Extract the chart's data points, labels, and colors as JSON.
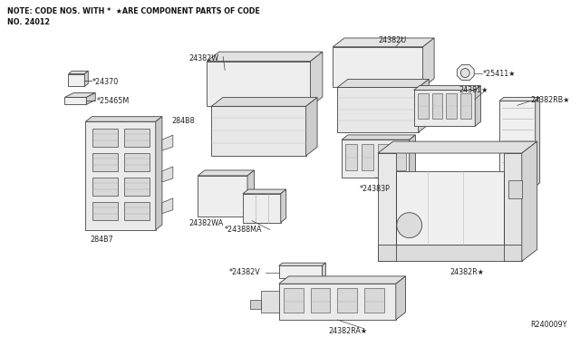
{
  "background_color": "#ffffff",
  "title_note": "NOTE: CODE NOS. WITH *  ★ARE COMPONENT PARTS OF CODE",
  "title_note2": "NO. 24012",
  "diagram_id": "R240009Y",
  "fig_width": 6.4,
  "fig_height": 3.72,
  "dpi": 100,
  "lc": "#444444",
  "lw": 0.6,
  "fc_light": "#f0f0f0",
  "fc_mid": "#e0e0e0",
  "fc_dark": "#d0d0d0"
}
